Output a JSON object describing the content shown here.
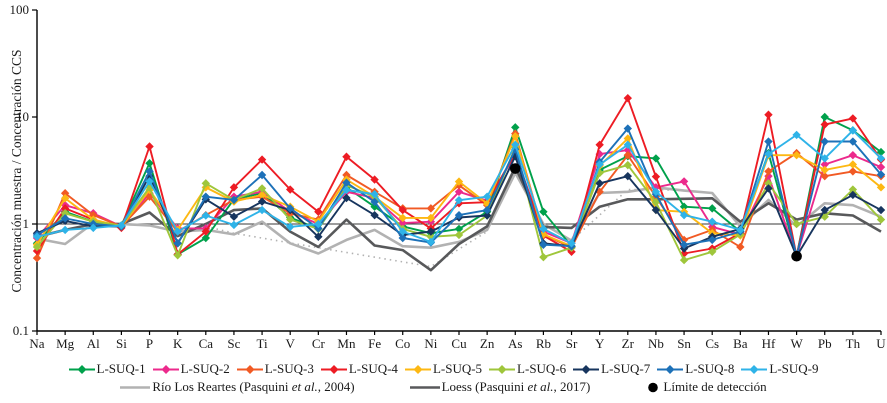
{
  "figure": {
    "y_axis_title": "Concentración muestra / Concentración CCS"
  },
  "chart_data": {
    "type": "line",
    "x_categories": [
      "Na",
      "Mg",
      "Al",
      "Si",
      "P",
      "K",
      "Ca",
      "Sc",
      "Ti",
      "V",
      "Cr",
      "Mn",
      "Fe",
      "Co",
      "Ni",
      "Cu",
      "Zn",
      "As",
      "Rb",
      "Sr",
      "Y",
      "Zr",
      "Nb",
      "Sn",
      "Cs",
      "Ba",
      "Hf",
      "W",
      "Pb",
      "Th",
      "U"
    ],
    "y_scale": "log",
    "ylim": [
      0.1,
      100
    ],
    "y_ticks": [
      {
        "label": "100",
        "value": 100
      },
      {
        "label": "10",
        "value": 10
      },
      {
        "label": "1",
        "value": 1
      },
      {
        "label": "0.1",
        "value": 0.1
      }
    ],
    "reference_line_y": 1,
    "grid": false,
    "series": [
      {
        "name": "L-SUQ-1",
        "color": "#00a14b",
        "marker": "diamond",
        "width": 1.9,
        "values": [
          0.66,
          1.3,
          1.05,
          0.97,
          3.7,
          0.52,
          0.74,
          1.7,
          1.94,
          1.15,
          0.9,
          2.2,
          1.45,
          0.95,
          0.82,
          0.9,
          1.3,
          8.0,
          1.3,
          0.62,
          3.2,
          4.3,
          4.1,
          1.45,
          1.4,
          0.85,
          4.6,
          0.5,
          10.0,
          7.5,
          4.7
        ]
      },
      {
        "name": "L-SUQ-2",
        "color": "#ec2a8c",
        "marker": "diamond",
        "width": 1.9,
        "values": [
          0.74,
          1.5,
          1.26,
          0.95,
          1.94,
          0.91,
          0.91,
          1.8,
          2.0,
          1.3,
          1.0,
          2.0,
          1.75,
          1.02,
          1.05,
          2.0,
          1.65,
          4.4,
          0.85,
          0.66,
          4.5,
          4.9,
          2.2,
          2.5,
          0.94,
          0.8,
          2.8,
          0.5,
          3.6,
          4.4,
          3.4
        ]
      },
      {
        "name": "L-SUQ-3",
        "color": "#f15a24",
        "marker": "diamond",
        "width": 1.9,
        "values": [
          0.48,
          1.94,
          1.21,
          0.95,
          1.8,
          0.85,
          1.21,
          1.68,
          1.8,
          1.25,
          1.1,
          2.87,
          2.0,
          1.4,
          1.4,
          2.3,
          1.5,
          7.0,
          0.8,
          0.6,
          2.0,
          4.4,
          1.8,
          0.71,
          0.88,
          0.61,
          3.1,
          4.6,
          2.8,
          3.1,
          2.8
        ]
      },
      {
        "name": "L-SUQ-4",
        "color": "#ed1c24",
        "marker": "diamond",
        "width": 1.9,
        "values": [
          0.56,
          1.4,
          1.1,
          0.92,
          5.3,
          0.52,
          0.85,
          2.2,
          4.0,
          2.1,
          1.3,
          4.25,
          2.6,
          1.35,
          0.91,
          1.56,
          1.6,
          4.6,
          0.78,
          0.55,
          5.5,
          15.0,
          2.77,
          0.53,
          0.59,
          0.82,
          10.5,
          0.5,
          8.5,
          9.7,
          4.0
        ]
      },
      {
        "name": "L-SUQ-5",
        "color": "#fdb813",
        "marker": "diamond",
        "width": 1.9,
        "values": [
          0.64,
          1.74,
          1.1,
          0.95,
          2.08,
          0.88,
          2.2,
          1.62,
          1.87,
          1.45,
          1.05,
          2.6,
          1.8,
          1.14,
          1.14,
          2.49,
          1.55,
          6.6,
          0.8,
          0.62,
          3.5,
          6.3,
          1.35,
          1.3,
          0.82,
          0.78,
          4.4,
          4.4,
          3.2,
          3.6,
          2.2
        ]
      },
      {
        "name": "L-SUQ-6",
        "color": "#9fc63b",
        "marker": "diamond",
        "width": 1.9,
        "values": [
          0.61,
          1.26,
          1.05,
          0.97,
          2.2,
          0.51,
          2.4,
          1.68,
          2.15,
          1.1,
          0.9,
          2.3,
          1.8,
          0.9,
          0.76,
          0.79,
          1.2,
          5.2,
          0.49,
          0.6,
          3.0,
          3.55,
          1.6,
          0.46,
          0.55,
          0.8,
          2.4,
          1.0,
          1.17,
          2.1,
          1.1
        ]
      },
      {
        "name": "L-SUQ-7",
        "color": "#17355e",
        "marker": "diamond",
        "width": 1.9,
        "values": [
          0.82,
          1.07,
          0.95,
          0.95,
          2.8,
          0.66,
          1.7,
          1.17,
          1.62,
          1.35,
          0.76,
          1.75,
          1.21,
          0.79,
          0.85,
          1.15,
          1.2,
          4.3,
          0.66,
          0.62,
          2.4,
          2.8,
          1.35,
          0.59,
          0.76,
          0.9,
          2.15,
          0.5,
          1.35,
          1.87,
          1.35
        ]
      },
      {
        "name": "L-SUQ-8",
        "color": "#1d71b8",
        "marker": "diamond",
        "width": 1.9,
        "values": [
          0.79,
          1.13,
          1.0,
          0.95,
          3.1,
          0.66,
          1.8,
          1.68,
          2.87,
          1.4,
          0.91,
          2.43,
          1.61,
          0.74,
          0.67,
          1.21,
          1.35,
          5.0,
          0.64,
          0.62,
          3.8,
          7.8,
          1.9,
          0.64,
          0.71,
          0.85,
          5.9,
          0.5,
          5.9,
          5.9,
          2.9
        ]
      },
      {
        "name": "L-SUQ-9",
        "color": "#2fb3e8",
        "marker": "diamond",
        "width": 1.9,
        "values": [
          0.76,
          0.88,
          0.92,
          0.97,
          2.5,
          0.85,
          1.2,
          0.98,
          1.35,
          0.94,
          1.0,
          2.08,
          1.9,
          0.85,
          0.68,
          1.67,
          1.8,
          5.5,
          0.9,
          0.66,
          3.6,
          5.5,
          2.0,
          1.21,
          1.05,
          0.88,
          4.5,
          6.8,
          4.1,
          7.5,
          4.1
        ]
      },
      {
        "name": "Río Los Reartes (Pasquini et al., 2004)",
        "color": "#b2b2b2",
        "marker": "none",
        "width": 2.6,
        "values": [
          0.73,
          0.65,
          1.02,
          1.0,
          0.97,
          0.85,
          0.88,
          0.8,
          1.05,
          0.66,
          0.53,
          0.71,
          0.88,
          0.62,
          0.6,
          0.68,
          0.88,
          3.0,
          1.0,
          0.7,
          1.95,
          2.0,
          2.2,
          2.05,
          1.95,
          0.95,
          1.68,
          0.95,
          1.56,
          1.5,
          1.17
        ]
      },
      {
        "name": "Loess (Pasquini et al., 2017)",
        "color": "#58595b",
        "marker": "none",
        "width": 2.6,
        "values": [
          0.76,
          0.88,
          1.0,
          1.0,
          1.28,
          0.77,
          1.0,
          1.35,
          1.4,
          0.85,
          0.61,
          1.1,
          0.63,
          0.57,
          0.37,
          0.65,
          0.95,
          3.4,
          0.94,
          0.92,
          1.45,
          1.7,
          1.7,
          1.72,
          1.74,
          1.05,
          1.56,
          1.1,
          1.26,
          1.2,
          0.85
        ]
      }
    ],
    "dotted_segments": {
      "color": "#b2b2b2",
      "runs": [
        [
          [
            "Ca",
            0.95
          ],
          [
            "Sc",
            0.82
          ],
          [
            "Cr",
            0.6
          ],
          [
            "Ni",
            0.4
          ],
          [
            "Zn",
            0.85
          ]
        ],
        [
          [
            "Sr",
            0.7
          ],
          [
            "Zr",
            2.1
          ],
          [
            "Nb",
            2.1
          ],
          [
            "Sn",
            2.05
          ],
          [
            "Cs",
            1.95
          ]
        ]
      ]
    },
    "detection_limit_points": [
      {
        "x": "As",
        "value": 3.3
      },
      {
        "x": "W",
        "value": 0.5
      }
    ],
    "legend": {
      "row2": [
        {
          "id": "rio",
          "pre": "Río Los Reartes (Pasquini ",
          "italic": "et al.",
          "post": ", 2004)",
          "color": "#b2b2b2",
          "marker": "line"
        },
        {
          "id": "loess",
          "pre": "Loess (Pasquini ",
          "italic": "et al.",
          "post": ", 2017)",
          "color": "#58595b",
          "marker": "line"
        },
        {
          "id": "deteccion",
          "pre": "Límite de detección",
          "italic": "",
          "post": "",
          "color": "#000000",
          "marker": "dot"
        }
      ]
    }
  }
}
